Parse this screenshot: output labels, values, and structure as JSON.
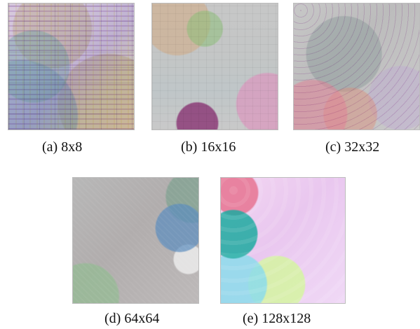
{
  "figure": {
    "panels": [
      {
        "id": "a",
        "caption": "(a) 8x8"
      },
      {
        "id": "b",
        "caption": "(b) 16x16"
      },
      {
        "id": "c",
        "caption": "(c) 32x32"
      },
      {
        "id": "d",
        "caption": "(d) 64x64"
      },
      {
        "id": "e",
        "caption": "(e) 128x128"
      }
    ]
  }
}
